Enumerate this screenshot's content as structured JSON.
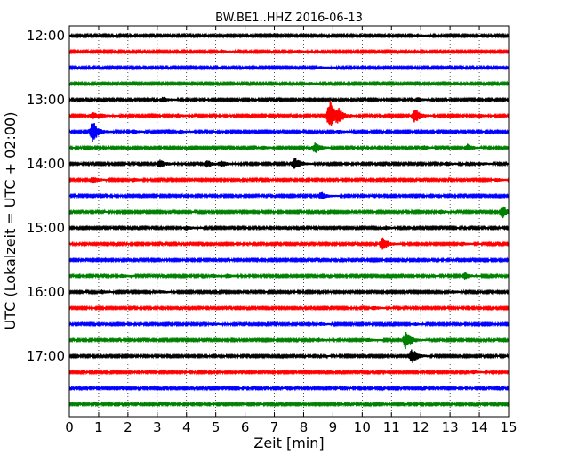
{
  "chart_data": {
    "type": "line",
    "title": "BW.BE1..HHZ 2016-06-13",
    "xlabel": "Zeit  [min]",
    "ylabel": "UTC (Lokalzeit = UTC + 02:00)",
    "xlim": [
      0,
      15
    ],
    "x_ticks": [
      "0",
      "1",
      "2",
      "3",
      "4",
      "5",
      "6",
      "7",
      "8",
      "9",
      "10",
      "11",
      "12",
      "13",
      "14",
      "15"
    ],
    "y_tick_labels": [
      "12:00",
      "13:00",
      "14:00",
      "15:00",
      "16:00",
      "17:00"
    ],
    "grid": "vertical dotted",
    "trace_interval_minutes": 15,
    "colors": [
      "#000000",
      "#ff0000",
      "#0000ff",
      "#008000"
    ],
    "series": [
      {
        "start": "12:00",
        "events": [
          [
            11.9,
            0.18
          ]
        ]
      },
      {
        "start": "12:15",
        "events": [
          [
            5.2,
            0.2
          ],
          [
            7.8,
            0.2
          ]
        ]
      },
      {
        "start": "12:30",
        "events": [
          [
            8.6,
            0.15
          ]
        ]
      },
      {
        "start": "12:45",
        "events": [
          [
            8.2,
            0.2
          ]
        ]
      },
      {
        "start": "13:00",
        "events": [
          [
            3.2,
            0.3
          ],
          [
            11.9,
            0.25
          ]
        ]
      },
      {
        "start": "13:15",
        "events": [
          [
            0.8,
            0.4
          ],
          [
            1.1,
            0.2
          ],
          [
            3.7,
            0.2
          ],
          [
            8.9,
            1.9
          ],
          [
            9.2,
            0.7
          ],
          [
            11.8,
            0.9
          ],
          [
            14.0,
            0.2
          ]
        ]
      },
      {
        "start": "13:30",
        "events": [
          [
            0.8,
            1.4
          ],
          [
            2.2,
            0.2
          ],
          [
            3.8,
            0.2
          ],
          [
            9.2,
            0.2
          ]
        ]
      },
      {
        "start": "13:45",
        "events": [
          [
            6.6,
            0.2
          ],
          [
            8.4,
            0.65
          ],
          [
            12.1,
            0.25
          ],
          [
            13.6,
            0.4
          ]
        ]
      },
      {
        "start": "14:00",
        "events": [
          [
            3.1,
            0.45
          ],
          [
            4.7,
            0.45
          ],
          [
            5.2,
            0.3
          ],
          [
            7.7,
            0.85
          ],
          [
            12.9,
            0.2
          ],
          [
            14.0,
            0.2
          ]
        ]
      },
      {
        "start": "14:15",
        "events": [
          [
            0.8,
            0.4
          ],
          [
            2.2,
            0.2
          ],
          [
            14.6,
            0.2
          ]
        ]
      },
      {
        "start": "14:30",
        "events": [
          [
            8.6,
            0.45
          ]
        ]
      },
      {
        "start": "14:45",
        "events": [
          [
            12.7,
            0.2
          ],
          [
            14.8,
            0.75
          ]
        ]
      },
      {
        "start": "15:00",
        "events": [
          [
            4.0,
            0.25
          ],
          [
            10.8,
            0.2
          ]
        ]
      },
      {
        "start": "15:15",
        "events": [
          [
            10.7,
            0.8
          ],
          [
            13.4,
            0.2
          ]
        ]
      },
      {
        "start": "15:30",
        "events": []
      },
      {
        "start": "15:45",
        "events": [
          [
            1.8,
            0.2
          ],
          [
            4.9,
            0.2
          ],
          [
            5.4,
            0.2
          ],
          [
            13.5,
            0.4
          ]
        ]
      },
      {
        "start": "16:00",
        "events": [
          [
            1.1,
            0.2
          ],
          [
            3.1,
            0.15
          ],
          [
            13.1,
            0.15
          ]
        ]
      },
      {
        "start": "16:15",
        "events": [
          [
            10.4,
            0.2
          ]
        ]
      },
      {
        "start": "16:30",
        "events": [
          [
            4.9,
            0.15
          ],
          [
            8.6,
            0.15
          ],
          [
            11.8,
            0.15
          ]
        ]
      },
      {
        "start": "16:45",
        "events": [
          [
            8.5,
            0.2
          ],
          [
            10.2,
            0.2
          ],
          [
            11.5,
            1.2
          ]
        ]
      },
      {
        "start": "17:00",
        "events": [
          [
            11.7,
            0.95
          ]
        ]
      },
      {
        "start": "17:15",
        "events": [
          [
            13.8,
            0.2
          ]
        ]
      },
      {
        "start": "17:30",
        "events": []
      },
      {
        "start": "17:45",
        "events": []
      }
    ]
  }
}
